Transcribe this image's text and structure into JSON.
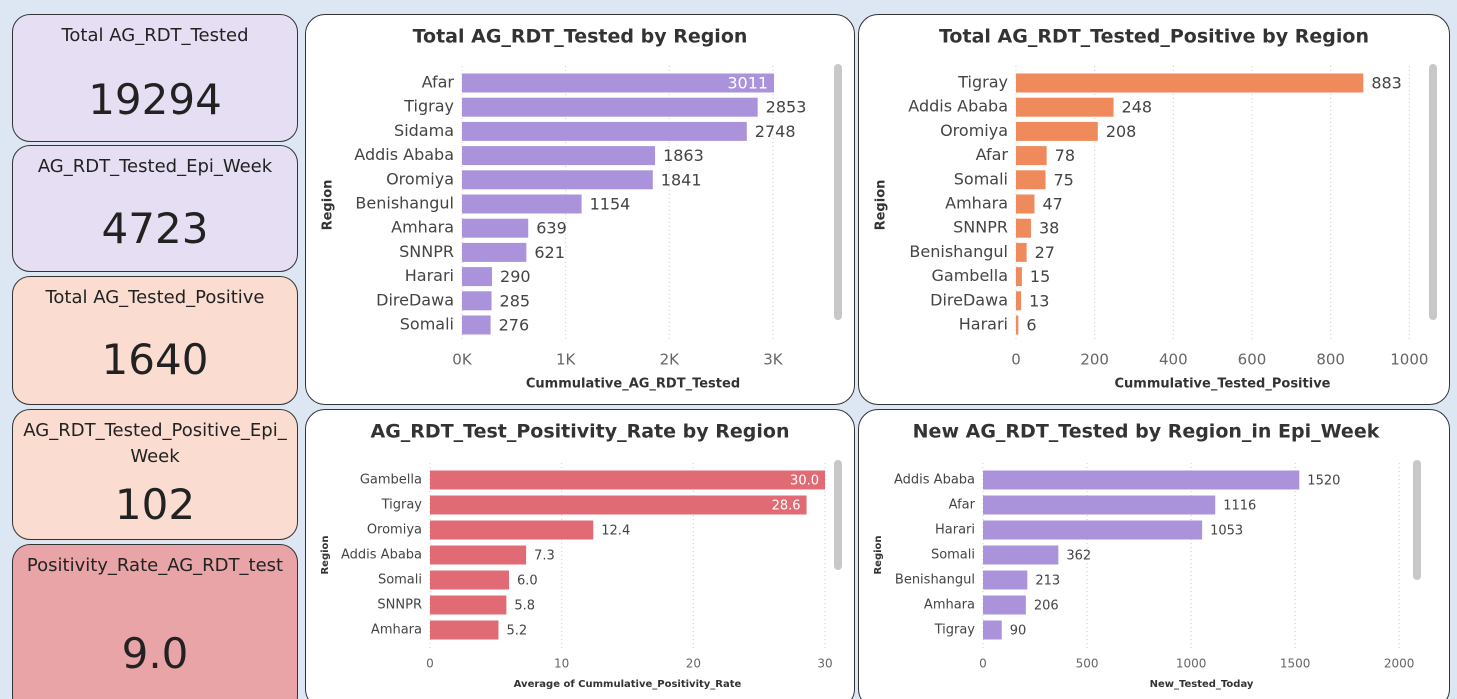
{
  "cards": [
    {
      "title": "Total AG_RDT_Tested",
      "value": 19294
    },
    {
      "title": "AG_RDT_Tested_Epi_Week",
      "value": 4723
    },
    {
      "title": "Total AG_Tested_Positive",
      "value": 1640
    },
    {
      "title": "AG_RDT_Tested_Positive_Epi_Week",
      "value": 102
    },
    {
      "title": "Positivity_Rate_AG_RDT_test",
      "value": 9.0,
      "value_label": "9.0"
    }
  ],
  "chart_data": [
    {
      "type": "bar",
      "orientation": "horizontal",
      "title": "Total AG_RDT_Tested by Region",
      "x_label": "Cummulative_AG_RDT_Tested",
      "y_label": "Region",
      "categories": [
        "Afar",
        "Tigray",
        "Sidama",
        "Addis Ababa",
        "Oromiya",
        "Benishangul",
        "Amhara",
        "SNNPR",
        "Harari",
        "DireDawa",
        "Somali"
      ],
      "values": [
        3011,
        2853,
        2748,
        1863,
        1841,
        1154,
        639,
        621,
        290,
        285,
        276
      ],
      "color": "#ab93db",
      "xlim": [
        0,
        3300
      ],
      "xticks": [
        {
          "value": 0,
          "label": "0K"
        },
        {
          "value": 1000,
          "label": "1K"
        },
        {
          "value": 2000,
          "label": "2K"
        },
        {
          "value": 3000,
          "label": "3K"
        }
      ],
      "grid": true
    },
    {
      "type": "bar",
      "orientation": "horizontal",
      "title": "Total AG_RDT_Tested_Positive by Region",
      "x_label": "Cummulative_Tested_Positive",
      "y_label": "Region",
      "categories": [
        "Tigray",
        "Addis Ababa",
        "Oromiya",
        "Afar",
        "Somali",
        "Amhara",
        "SNNPR",
        "Benishangul",
        "Gambella",
        "DireDawa",
        "Harari"
      ],
      "values": [
        883,
        248,
        208,
        78,
        75,
        47,
        38,
        27,
        15,
        13,
        6
      ],
      "color": "#ee8a5b",
      "xlim": [
        0,
        1050
      ],
      "xticks": [
        0,
        200,
        400,
        600,
        800,
        1000
      ],
      "grid": true
    },
    {
      "type": "bar",
      "orientation": "horizontal",
      "title": "AG_RDT_Test_Positivity_Rate by Region",
      "x_label": "Average of Cummulative_Positivity_Rate",
      "y_label": "Region",
      "categories": [
        "Gambella",
        "Tigray",
        "Oromiya",
        "Addis Ababa",
        "Somali",
        "SNNPR",
        "Amhara"
      ],
      "values": [
        30.0,
        28.6,
        12.4,
        7.3,
        6.0,
        5.8,
        5.2
      ],
      "value_labels": [
        "30.0",
        "28.6",
        "12.4",
        "7.3",
        "6.0",
        "5.8",
        "5.2"
      ],
      "color": "#e06b75",
      "xlim": [
        0,
        30
      ],
      "xticks": [
        0,
        10,
        20,
        30
      ],
      "grid": true
    },
    {
      "type": "bar",
      "orientation": "horizontal",
      "title": "New AG_RDT_Tested by Region_in Epi_Week",
      "x_label": "New_Tested_Today",
      "y_label": "Region",
      "categories": [
        "Addis Ababa",
        "Afar",
        "Harari",
        "Somali",
        "Benishangul",
        "Amhara",
        "Tigray"
      ],
      "values": [
        1520,
        1116,
        1053,
        362,
        213,
        206,
        90
      ],
      "color": "#ab93db",
      "xlim": [
        0,
        2100
      ],
      "xticks": [
        0,
        500,
        1000,
        1500,
        2000
      ],
      "grid": true
    }
  ]
}
